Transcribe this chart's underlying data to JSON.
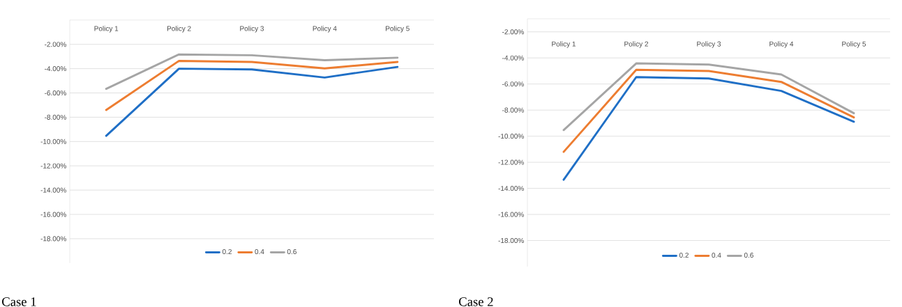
{
  "chart_data": [
    {
      "type": "line",
      "categories": [
        "Policy 1",
        "Policy 2",
        "Policy 3",
        "Policy 4",
        "Policy 5"
      ],
      "series": [
        {
          "name": "0.2",
          "color": "#1f6fc6",
          "values": [
            -9.53,
            -4.0,
            -4.07,
            -4.73,
            -3.86
          ]
        },
        {
          "name": "0.4",
          "color": "#ed7d31",
          "values": [
            -7.4,
            -3.36,
            -3.45,
            -3.98,
            -3.45
          ]
        },
        {
          "name": "0.6",
          "color": "#a5a5a5",
          "values": [
            -5.66,
            -2.83,
            -2.9,
            -3.31,
            -3.1
          ]
        }
      ],
      "ylim": [
        -20,
        0
      ],
      "yticks": [
        {
          "value": -18,
          "label": "-18.00%"
        },
        {
          "value": -16,
          "label": "-16.00%"
        },
        {
          "value": -14,
          "label": "-14.00%"
        },
        {
          "value": -12,
          "label": "-12.00%"
        },
        {
          "value": -10,
          "label": "-10.00%"
        },
        {
          "value": -8,
          "label": "-8.00%"
        },
        {
          "value": -6,
          "label": "-6.00%"
        },
        {
          "value": -4,
          "label": "-4.00%"
        },
        {
          "value": -2,
          "label": "-2.00%"
        }
      ],
      "grid": "y",
      "legend": "bottom",
      "marker": "none",
      "line_style": "solid",
      "annotations": [
        "Case 1"
      ]
    },
    {
      "type": "line",
      "categories": [
        "Policy 1",
        "Policy 2",
        "Policy 3",
        "Policy 4",
        "Policy 5"
      ],
      "series": [
        {
          "name": "0.2",
          "color": "#1f6fc6",
          "values": [
            -13.34,
            -5.47,
            -5.58,
            -6.53,
            -8.89
          ]
        },
        {
          "name": "0.4",
          "color": "#ed7d31",
          "values": [
            -11.2,
            -4.91,
            -5.0,
            -5.84,
            -8.56
          ]
        },
        {
          "name": "0.6",
          "color": "#a5a5a5",
          "values": [
            -9.53,
            -4.42,
            -4.51,
            -5.27,
            -8.24
          ]
        }
      ],
      "ylim": [
        -20,
        -1
      ],
      "yticks": [
        {
          "value": -18,
          "label": "-18.00%"
        },
        {
          "value": -16,
          "label": "-16.00%"
        },
        {
          "value": -14,
          "label": "-14.00%"
        },
        {
          "value": -12,
          "label": "-12.00%"
        },
        {
          "value": -10,
          "label": "-10.00%"
        },
        {
          "value": -8,
          "label": "-8.00%"
        },
        {
          "value": -6,
          "label": "-6.00%"
        },
        {
          "value": -4,
          "label": "-4.00%"
        },
        {
          "value": -2,
          "label": "-2.00%"
        }
      ],
      "grid": "y",
      "legend": "bottom",
      "marker": "none",
      "line_style": "solid",
      "annotations": [
        "Case 2"
      ]
    }
  ]
}
